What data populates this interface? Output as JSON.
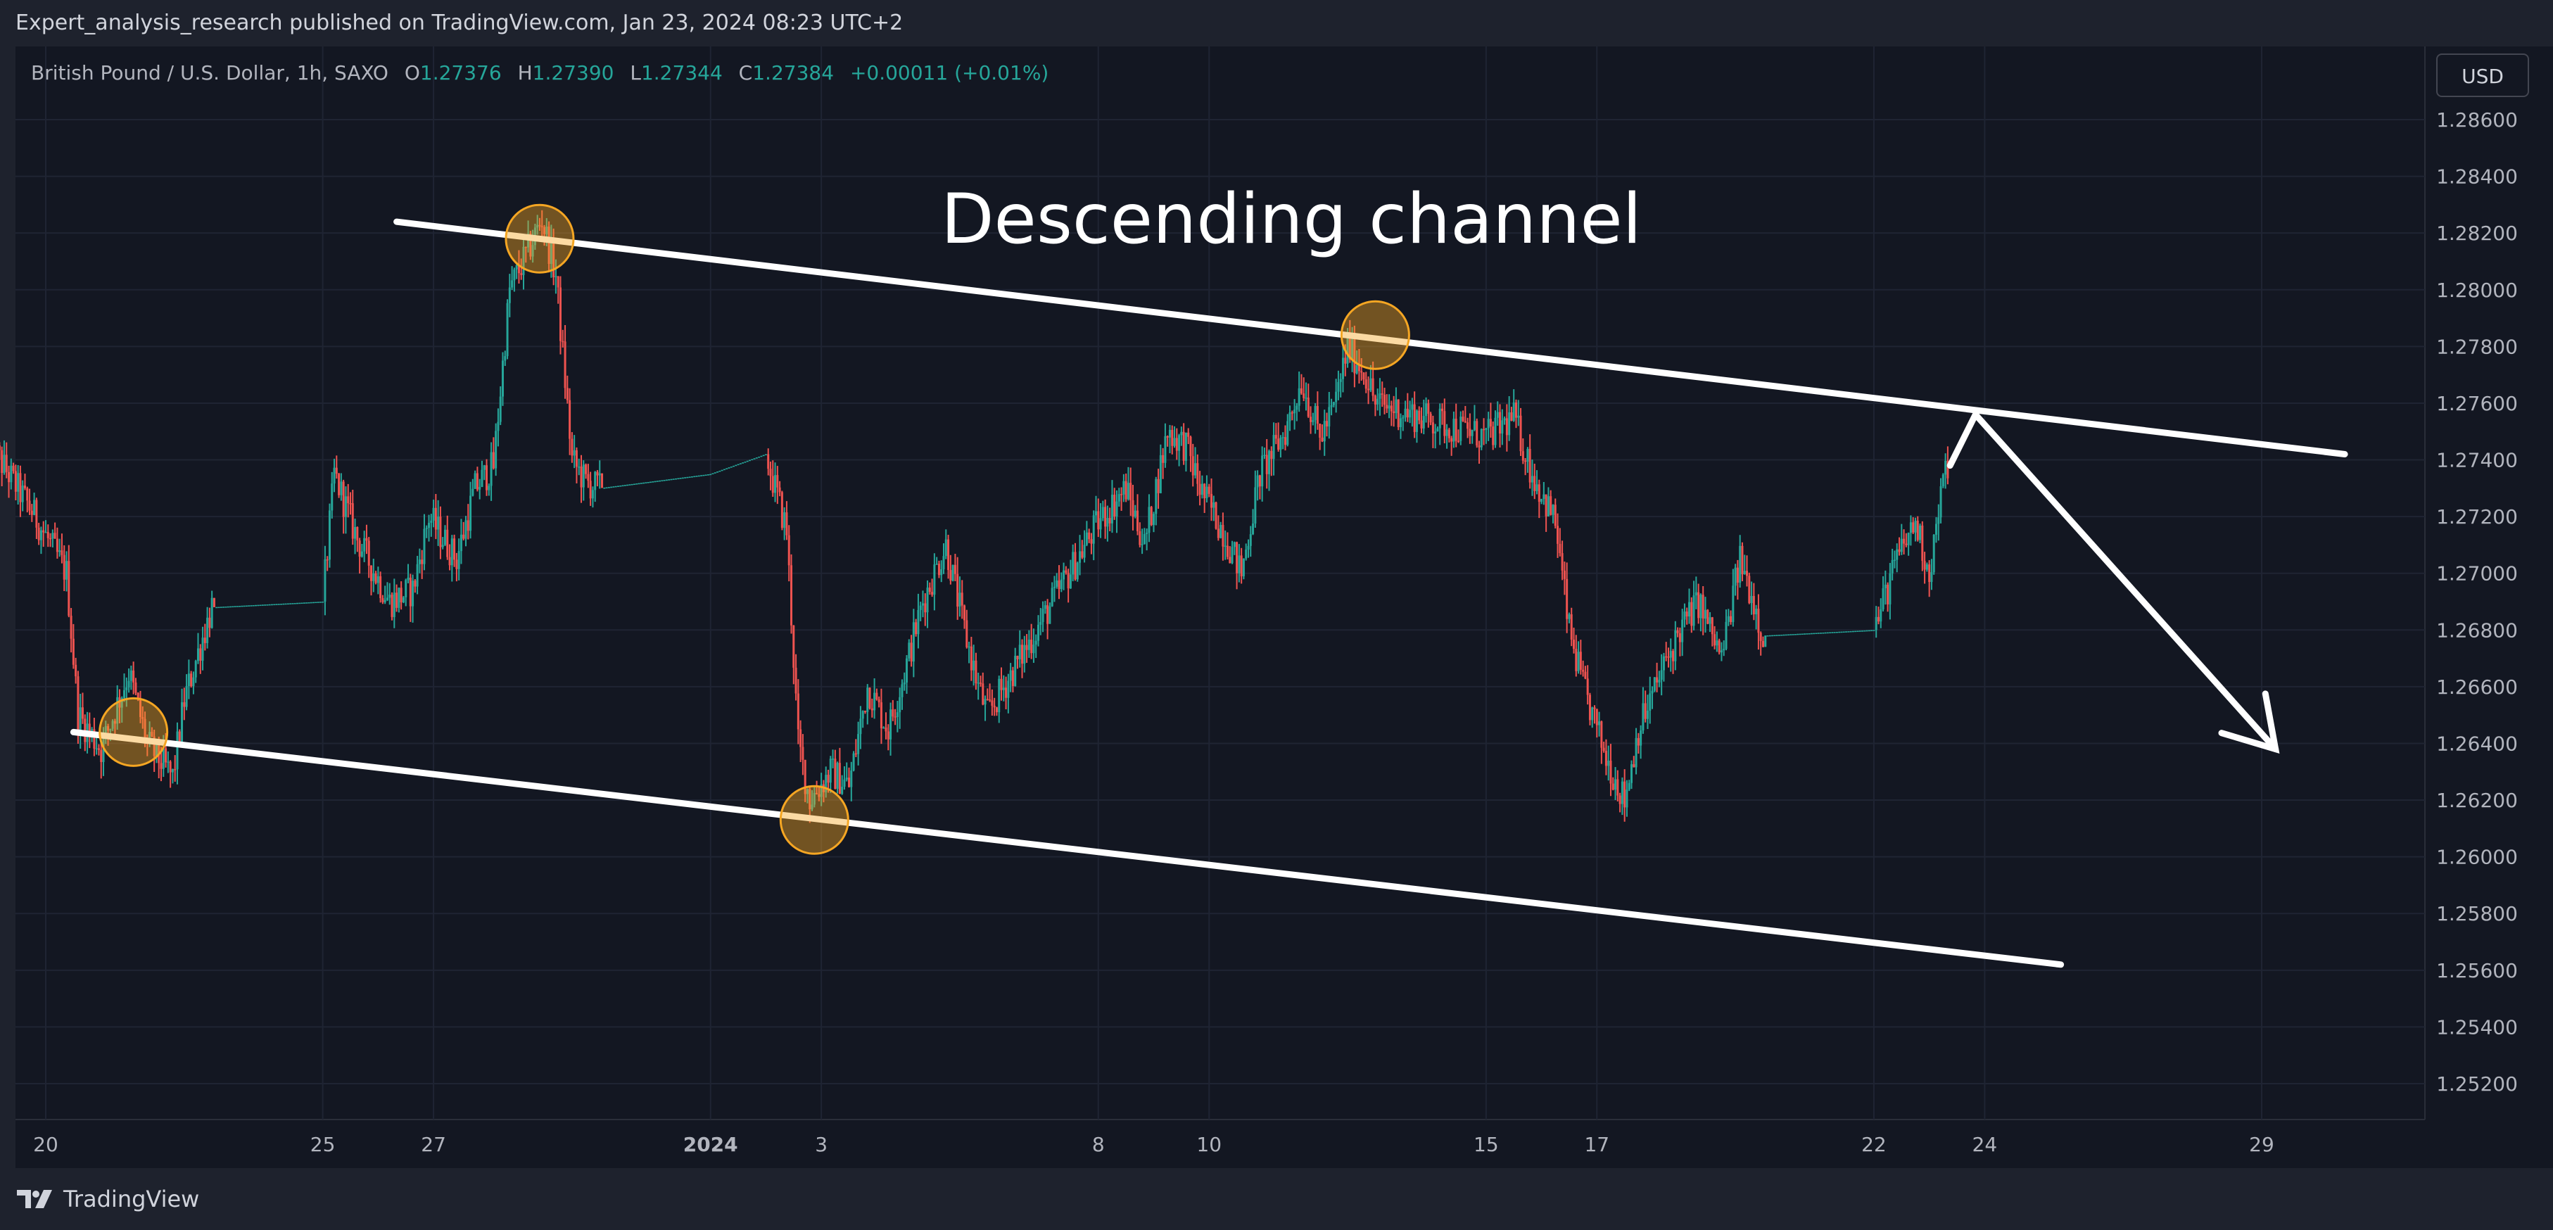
{
  "header": {
    "publisher": "Expert_analysis_research published on TradingView.com, Jan 23, 2024 08:23 UTC+2"
  },
  "legend": {
    "symbol": "British Pound / U.S. Dollar, 1h, SAXO",
    "open_label": "O",
    "open": "1.27376",
    "high_label": "H",
    "high": "1.27390",
    "low_label": "L",
    "low": "1.27344",
    "close_label": "C",
    "close": "1.27384",
    "change": "+0.00011 (+0.01%)"
  },
  "currency_button": "USD",
  "annotation": {
    "label": "Descending channel"
  },
  "footer": {
    "brand": "TradingView"
  },
  "colors": {
    "background": "#131722",
    "panel": "#1e222d",
    "up": "#26a69a",
    "down": "#ef5350",
    "marker": "#f5a623",
    "drawing": "#ffffff"
  },
  "chart_data": {
    "type": "candlestick",
    "instrument": "British Pound / U.S. Dollar",
    "timeframe": "1h",
    "exchange": "SAXO",
    "y_axis": {
      "range": [
        1.251,
        1.2872
      ],
      "ticks": [
        "1.28600",
        "1.28400",
        "1.28200",
        "1.28000",
        "1.27800",
        "1.27600",
        "1.27400",
        "1.27200",
        "1.27000",
        "1.26800",
        "1.26600",
        "1.26400",
        "1.26200",
        "1.26000",
        "1.25800",
        "1.25600",
        "1.25400",
        "1.25200"
      ]
    },
    "x_axis": {
      "range": [
        "Dec 19",
        "Jan 31"
      ],
      "ticks": [
        {
          "label": "20",
          "date": "Dec 20"
        },
        {
          "label": "25",
          "date": "Dec 25"
        },
        {
          "label": "27",
          "date": "Dec 27"
        },
        {
          "label": "2024",
          "date": "Jan 1",
          "bold": true
        },
        {
          "label": "3",
          "date": "Jan 3"
        },
        {
          "label": "8",
          "date": "Jan 8"
        },
        {
          "label": "10",
          "date": "Jan 10"
        },
        {
          "label": "15",
          "date": "Jan 15"
        },
        {
          "label": "17",
          "date": "Jan 17"
        },
        {
          "label": "22",
          "date": "Jan 22"
        },
        {
          "label": "24",
          "date": "Jan 24"
        },
        {
          "label": "29",
          "date": "Jan 29"
        }
      ]
    },
    "grid": true,
    "price_path": [
      [
        "Dec 19 00:00",
        1.2745
      ],
      [
        "Dec 19 18:00",
        1.2722
      ],
      [
        "Dec 20 09:00",
        1.27
      ],
      [
        "Dec 20 14:00",
        1.265
      ],
      [
        "Dec 21 00:00",
        1.2638
      ],
      [
        "Dec 21 12:00",
        1.2665
      ],
      [
        "Dec 21 20:00",
        1.264
      ],
      [
        "Dec 22 07:00",
        1.2628
      ],
      [
        "Dec 22 12:00",
        1.2655
      ],
      [
        "Dec 22 18:00",
        1.2672
      ],
      [
        "Dec 23 00:00",
        1.2688
      ],
      [
        "Dec 25 00:00",
        1.269
      ],
      [
        "Dec 25 05:00",
        1.2735
      ],
      [
        "Dec 25 15:00",
        1.2712
      ],
      [
        "Dec 26 05:00",
        1.269
      ],
      [
        "Dec 26 15:00",
        1.2694
      ],
      [
        "Dec 26 22:00",
        1.272
      ],
      [
        "Dec 27 10:00",
        1.2705
      ],
      [
        "Dec 27 18:00",
        1.273
      ],
      [
        "Dec 28 02:00",
        1.2738
      ],
      [
        "Dec 28 09:00",
        1.28
      ],
      [
        "Dec 28 16:00",
        1.2812
      ],
      [
        "Dec 28 23:00",
        1.2825
      ],
      [
        "Dec 29 05:00",
        1.2805
      ],
      [
        "Dec 29 12:00",
        1.274
      ],
      [
        "Dec 29 18:00",
        1.2732
      ],
      [
        "Dec 30 00:00",
        1.273
      ],
      [
        "Jan 1 00:00",
        1.2735
      ],
      [
        "Jan 2 00:00",
        1.2742
      ],
      [
        "Jan 2 09:00",
        1.2715
      ],
      [
        "Jan 2 14:00",
        1.264
      ],
      [
        "Jan 2 19:00",
        1.262
      ],
      [
        "Jan 3 04:00",
        1.263
      ],
      [
        "Jan 3 12:00",
        1.2625
      ],
      [
        "Jan 3 20:00",
        1.266
      ],
      [
        "Jan 4 05:00",
        1.2645
      ],
      [
        "Jan 4 12:00",
        1.2665
      ],
      [
        "Jan 4 20:00",
        1.269
      ],
      [
        "Jan 5 06:00",
        1.271
      ],
      [
        "Jan 5 14:00",
        1.268
      ],
      [
        "Jan 5 20:00",
        1.266
      ],
      [
        "Jan 6 00:00",
        1.265
      ],
      [
        "Jan 8 00:00",
        1.2718
      ],
      [
        "Jan 8 12:00",
        1.273
      ],
      [
        "Jan 8 20:00",
        1.271
      ],
      [
        "Jan 9 06:00",
        1.275
      ],
      [
        "Jan 9 14:00",
        1.2745
      ],
      [
        "Jan 9 20:00",
        1.273
      ],
      [
        "Jan 10 06:00",
        1.2715
      ],
      [
        "Jan 10 14:00",
        1.27
      ],
      [
        "Jan 10 22:00",
        1.2735
      ],
      [
        "Jan 11 09:00",
        1.275
      ],
      [
        "Jan 11 16:00",
        1.2768
      ],
      [
        "Jan 12 00:00",
        1.2748
      ],
      [
        "Jan 12 06:00",
        1.2758
      ],
      [
        "Jan 12 12:00",
        1.278
      ],
      [
        "Jan 12 20:00",
        1.277
      ],
      [
        "Jan 13 00:00",
        1.276
      ],
      [
        "Jan 15 00:00",
        1.2748
      ],
      [
        "Jan 15 12:00",
        1.2755
      ],
      [
        "Jan 15 20:00",
        1.2735
      ],
      [
        "Jan 16 06:00",
        1.2718
      ],
      [
        "Jan 16 12:00",
        1.268
      ],
      [
        "Jan 16 18:00",
        1.266
      ],
      [
        "Jan 17 04:00",
        1.2635
      ],
      [
        "Jan 17 12:00",
        1.262
      ],
      [
        "Jan 17 18:00",
        1.2645
      ],
      [
        "Jan 18 04:00",
        1.2665
      ],
      [
        "Jan 18 12:00",
        1.268
      ],
      [
        "Jan 18 20:00",
        1.269
      ],
      [
        "Jan 19 06:00",
        1.267
      ],
      [
        "Jan 19 14:00",
        1.2705
      ],
      [
        "Jan 19 20:00",
        1.269
      ],
      [
        "Jan 20 00:00",
        1.2678
      ],
      [
        "Jan 22 00:00",
        1.268
      ],
      [
        "Jan 22 10:00",
        1.2705
      ],
      [
        "Jan 22 18:00",
        1.2718
      ],
      [
        "Jan 23 00:00",
        1.27
      ],
      [
        "Jan 23 06:00",
        1.2732
      ],
      [
        "Jan 23 08:00",
        1.27384
      ]
    ],
    "drawings": {
      "channel_upper": [
        [
          "Dec 26 08:00",
          1.2824
        ],
        [
          "Jan 30 12:00",
          1.2742
        ]
      ],
      "channel_lower": [
        [
          "Dec 20 12:00",
          1.2644
        ],
        [
          "Jan 25 09:00",
          1.2562
        ]
      ],
      "forecast_arrow": [
        [
          "Jan 23 09:00",
          1.2738
        ],
        [
          "Jan 23 20:00",
          1.2756
        ],
        [
          "Jan 29 06:00",
          1.2638
        ]
      ],
      "touch_points": [
        [
          "Dec 21 14:00",
          1.2644
        ],
        [
          "Dec 28 22:00",
          1.2818
        ],
        [
          "Jan 2 21:00",
          1.2613
        ],
        [
          "Jan 13 00:00",
          1.2784
        ]
      ]
    }
  }
}
